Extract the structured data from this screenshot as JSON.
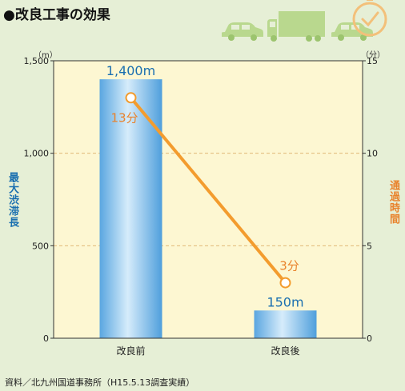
{
  "title": "●改良工事の効果",
  "source": "資料／北九州国道事務所（H15.5.13調査実績）",
  "icons": [
    "car-icon",
    "truck-icon",
    "car-icon",
    "clock-icon"
  ],
  "colors": {
    "background": "#e6efd6",
    "plot_background": "#fdf7d2",
    "bar": "#6ab1e6",
    "line": "#f39c2e",
    "left_axis_label": "#1a6fb0",
    "right_axis_label": "#e9822b",
    "bar_label": "#1a6fb0",
    "line_label": "#e9822b"
  },
  "chart_data": {
    "type": "bar",
    "categories": [
      "改良前",
      "改良後"
    ],
    "series": [
      {
        "type": "bar",
        "axis": "left",
        "values": [
          1400,
          150
        ],
        "labels": [
          "1,400m",
          "150m"
        ]
      },
      {
        "type": "line",
        "axis": "right",
        "values": [
          13,
          3
        ],
        "labels": [
          "13分",
          "3分"
        ]
      }
    ],
    "ylabel": "最大渋滞長",
    "yunit": "（m）",
    "ylim": [
      0,
      1500
    ],
    "yticks": [
      0,
      500,
      1000,
      1500
    ],
    "ytick_labels": [
      "0",
      "500",
      "1,000",
      "1,500"
    ],
    "y2label": "通過時間",
    "y2unit": "（分）",
    "y2lim": [
      0,
      15
    ],
    "y2ticks": [
      0,
      5,
      10,
      15
    ],
    "y2tick_labels": [
      "0",
      "5",
      "10",
      "15"
    ],
    "grid": "dashed horizontal at 500 and 1000"
  }
}
